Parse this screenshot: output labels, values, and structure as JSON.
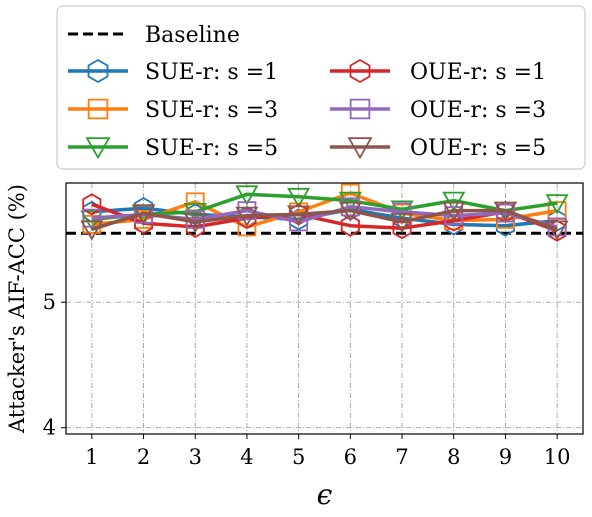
{
  "chart_data": {
    "type": "line",
    "title": "",
    "xlabel": "ϵ",
    "ylabel": "Attacker's AIF-ACC (%)",
    "x": [
      1,
      2,
      3,
      4,
      5,
      6,
      7,
      8,
      9,
      10
    ],
    "xlim": [
      0.5,
      10.5
    ],
    "ylim": [
      3.95,
      5.95
    ],
    "yticks": [
      4,
      5
    ],
    "grid": true,
    "legend_position": "top",
    "baseline": {
      "name": "Baseline",
      "value": 5.55,
      "color": "#000000"
    },
    "series": [
      {
        "name": "SUE-r: s =1",
        "color": "#1f77b4",
        "marker": "hexagon",
        "values": [
          5.72,
          5.75,
          5.7,
          5.68,
          5.66,
          5.74,
          5.67,
          5.62,
          5.61,
          5.65
        ]
      },
      {
        "name": "SUE-r: s =3",
        "color": "#ff7f0e",
        "marker": "square",
        "values": [
          5.62,
          5.66,
          5.8,
          5.6,
          5.72,
          5.87,
          5.71,
          5.65,
          5.66,
          5.73
        ]
      },
      {
        "name": "SUE-r: s =5",
        "color": "#2ca02c",
        "marker": "triangle-down",
        "values": [
          5.66,
          5.7,
          5.72,
          5.86,
          5.84,
          5.81,
          5.74,
          5.81,
          5.73,
          5.79
        ]
      },
      {
        "name": "OUE-r: s =1",
        "color": "#d62728",
        "marker": "hexagon",
        "values": [
          5.78,
          5.63,
          5.6,
          5.67,
          5.7,
          5.61,
          5.59,
          5.65,
          5.72,
          5.57
        ]
      },
      {
        "name": "OUE-r: s =3",
        "color": "#9467bd",
        "marker": "square",
        "values": [
          5.67,
          5.7,
          5.66,
          5.73,
          5.64,
          5.76,
          5.72,
          5.69,
          5.71,
          5.6
        ]
      },
      {
        "name": "OUE-r: s =5",
        "color": "#8c564b",
        "marker": "triangle-down",
        "values": [
          5.58,
          5.71,
          5.64,
          5.69,
          5.7,
          5.73,
          5.64,
          5.73,
          5.73,
          5.58
        ]
      }
    ]
  }
}
